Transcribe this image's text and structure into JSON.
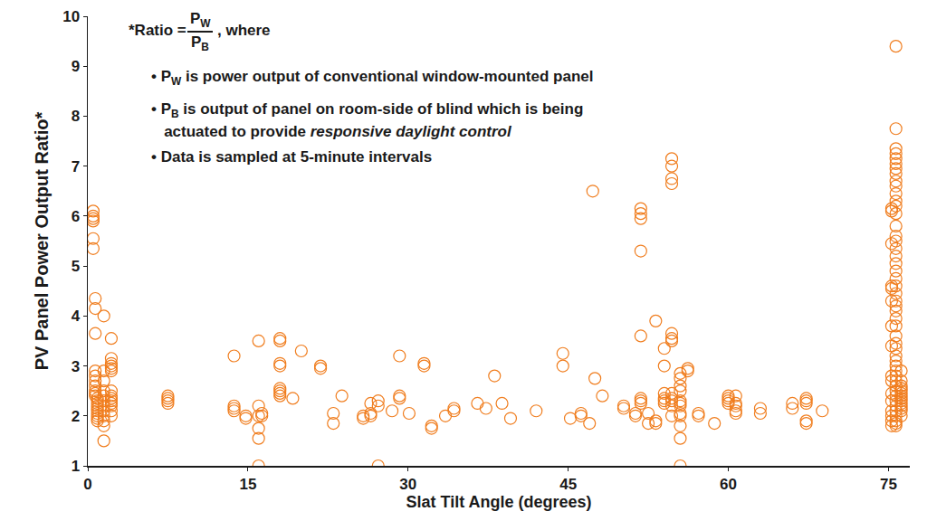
{
  "chart_data": {
    "type": "scatter",
    "x_label": "Slat Tilt Angle (degrees)",
    "y_label": "PV Panel Power Output Ratio*",
    "color": "#f07d1e",
    "marker": "circle-open",
    "grid": false,
    "xlim": [
      0,
      77
    ],
    "xticks": [
      0,
      15,
      30,
      45,
      60,
      75
    ],
    "ylim": [
      1,
      10
    ],
    "yticks": [
      1,
      2,
      3,
      4,
      5,
      6,
      7,
      8,
      9,
      10
    ],
    "ratio": {
      "prefix": "*Ratio =",
      "numerator": [
        {
          "text": "P"
        },
        {
          "text": "W",
          "style": "sub"
        }
      ],
      "denominator": [
        {
          "text": "P"
        },
        {
          "text": "B",
          "style": "sub"
        }
      ],
      "suffix": ", where"
    },
    "notes": [
      [
        {
          "text": "• "
        },
        {
          "text": "P"
        },
        {
          "text": "W",
          "style": "sub"
        },
        {
          "text": " is power output of conventional window-mounted panel"
        }
      ],
      [
        {
          "text": "• "
        },
        {
          "text": "P"
        },
        {
          "text": "B",
          "style": "sub"
        },
        {
          "text": " is output of panel on room-side of blind which is being"
        }
      ],
      [
        {
          "text": "   actuated to provide "
        },
        {
          "text": "responsive daylight control",
          "style": "italic"
        }
      ],
      [
        {
          "text": "• Data is sampled at 5-minute intervals"
        }
      ]
    ],
    "x": [
      0.5,
      0.5,
      0.5,
      0.5,
      0.5,
      0.5,
      0.7,
      0.7,
      0.7,
      0.7,
      0.7,
      0.7,
      0.7,
      0.7,
      0.7,
      0.7,
      0.9,
      0.9,
      0.9,
      0.9,
      0.9,
      0.9,
      0.9,
      0.9,
      0.9,
      0.9,
      1.5,
      1.5,
      1.5,
      1.5,
      1.5,
      1.5,
      1.5,
      1.5,
      1.5,
      1.5,
      1.5,
      1.5,
      2.2,
      2.2,
      2.2,
      2.2,
      2.2,
      2.2,
      2.2,
      2.2,
      2.2,
      2.2,
      2.2,
      2.2,
      2.2,
      2.2,
      7.5,
      7.5,
      7.5,
      7.5,
      13.7,
      13.7,
      13.7,
      13.7,
      14.8,
      14.8,
      16.0,
      16.0,
      16.0,
      16.0,
      16.0,
      16.0,
      16.3,
      16.3,
      18.0,
      18.0,
      18.0,
      18.0,
      18.0,
      18.0,
      18.0,
      18.0,
      19.2,
      20.0,
      21.8,
      21.8,
      23.0,
      23.0,
      23.8,
      25.8,
      25.8,
      26.5,
      26.5,
      26.5,
      27.2,
      27.2,
      27.2,
      28.5,
      29.2,
      29.2,
      29.2,
      30.1,
      31.5,
      31.5,
      32.2,
      32.2,
      33.5,
      34.3,
      34.3,
      36.5,
      37.3,
      38.1,
      38.8,
      39.6,
      42.0,
      44.5,
      44.5,
      45.2,
      46.2,
      46.2,
      47.0,
      47.3,
      47.5,
      48.2,
      50.2,
      50.2,
      51.3,
      51.3,
      51.8,
      51.8,
      51.8,
      51.8,
      51.8,
      51.8,
      51.8,
      51.8,
      52.5,
      52.5,
      53.2,
      53.2,
      53.2,
      54.0,
      54.0,
      54.0,
      54.0,
      54.0,
      54.0,
      54.7,
      54.7,
      54.7,
      54.7,
      54.7,
      54.7,
      54.7,
      54.7,
      54.7,
      54.7,
      54.7,
      54.7,
      55.5,
      55.5,
      55.5,
      55.5,
      55.5,
      55.5,
      55.5,
      55.5,
      55.5,
      55.5,
      55.5,
      55.5,
      56.2,
      56.2,
      57.2,
      57.2,
      58.7,
      60.0,
      60.0,
      60.0,
      60.0,
      60.7,
      60.7,
      60.7,
      60.7,
      60.7,
      63.0,
      63.0,
      66.0,
      66.0,
      67.3,
      67.3,
      67.3,
      67.3,
      67.3,
      68.8,
      75.3,
      75.3,
      75.3,
      75.3,
      75.3,
      75.3,
      75.3,
      75.3,
      75.3,
      75.3,
      75.3,
      75.3,
      75.3,
      75.3,
      75.3,
      75.3,
      75.7,
      75.7,
      75.7,
      75.7,
      75.7,
      75.7,
      75.7,
      75.7,
      75.7,
      75.7,
      75.7,
      75.7,
      75.7,
      75.7,
      75.7,
      75.7,
      75.7,
      75.7,
      75.7,
      75.7,
      75.7,
      75.7,
      75.7,
      75.7,
      75.7,
      75.7,
      75.7,
      75.7,
      75.7,
      75.7,
      75.7,
      75.7,
      75.7,
      75.7,
      75.7,
      75.7,
      75.7,
      75.7,
      75.7,
      75.7,
      75.7,
      75.7,
      75.7,
      75.7,
      75.7,
      75.7,
      75.7,
      75.7,
      76.2,
      76.2,
      76.2,
      76.2,
      76.2,
      76.2,
      76.2,
      76.2,
      76.2,
      76.2,
      76.2,
      76.2,
      76.2,
      76.2
    ],
    "values": [
      6.1,
      6.0,
      5.95,
      5.9,
      5.55,
      5.35,
      4.35,
      4.15,
      3.65,
      2.9,
      2.8,
      2.7,
      2.6,
      2.5,
      2.45,
      2.4,
      2.35,
      2.3,
      2.25,
      2.2,
      2.15,
      2.1,
      2.05,
      2.0,
      1.95,
      1.9,
      4.0,
      2.9,
      2.7,
      2.5,
      2.4,
      2.3,
      2.2,
      2.1,
      2.0,
      1.9,
      1.8,
      1.5,
      3.55,
      3.15,
      3.05,
      3.0,
      2.95,
      2.9,
      2.5,
      2.4,
      2.35,
      2.3,
      2.25,
      2.2,
      2.1,
      2.0,
      2.4,
      2.35,
      2.3,
      2.25,
      3.2,
      2.2,
      2.15,
      2.1,
      2.0,
      1.95,
      3.5,
      2.2,
      2.0,
      1.75,
      1.55,
      1.0,
      2.05,
      2.0,
      3.55,
      3.5,
      3.05,
      3.0,
      2.55,
      2.5,
      2.45,
      2.4,
      2.35,
      3.3,
      3.0,
      2.95,
      2.05,
      1.85,
      2.4,
      2.0,
      1.95,
      2.25,
      2.05,
      2.0,
      1.0,
      2.3,
      2.2,
      2.1,
      3.2,
      2.4,
      2.35,
      2.05,
      3.05,
      3.0,
      1.8,
      1.75,
      2.0,
      2.1,
      2.15,
      2.25,
      2.15,
      2.8,
      2.25,
      1.95,
      2.1,
      3.0,
      3.25,
      1.95,
      2.05,
      2.0,
      1.85,
      6.5,
      2.75,
      2.4,
      2.2,
      2.15,
      2.05,
      2.0,
      6.15,
      6.05,
      5.95,
      5.3,
      3.6,
      2.35,
      2.3,
      2.25,
      2.05,
      1.85,
      3.9,
      1.9,
      1.85,
      3.35,
      3.0,
      2.45,
      2.35,
      2.3,
      2.25,
      7.15,
      7.0,
      6.75,
      6.65,
      3.65,
      3.55,
      3.5,
      2.45,
      2.35,
      2.3,
      2.2,
      2.0,
      2.85,
      2.75,
      2.6,
      2.5,
      2.3,
      2.25,
      2.2,
      2.05,
      2.0,
      1.8,
      1.55,
      1.0,
      2.95,
      2.9,
      2.05,
      2.0,
      1.85,
      2.4,
      2.35,
      2.3,
      2.25,
      2.4,
      2.25,
      2.2,
      2.1,
      2.05,
      2.15,
      2.05,
      2.25,
      2.15,
      2.35,
      2.3,
      2.25,
      1.9,
      1.85,
      2.1,
      6.15,
      6.1,
      5.45,
      4.6,
      4.55,
      4.3,
      3.8,
      3.4,
      2.8,
      2.7,
      2.45,
      2.3,
      2.1,
      2.0,
      1.9,
      1.8,
      9.4,
      7.75,
      7.35,
      7.25,
      7.15,
      7.05,
      6.95,
      6.85,
      6.7,
      6.6,
      6.45,
      6.3,
      6.2,
      6.05,
      5.8,
      5.6,
      5.5,
      5.35,
      5.2,
      5.05,
      4.9,
      4.75,
      4.6,
      4.45,
      4.3,
      4.2,
      4.1,
      3.95,
      3.8,
      3.6,
      3.45,
      3.35,
      3.2,
      3.1,
      3.0,
      2.9,
      2.8,
      2.7,
      2.6,
      2.5,
      2.4,
      2.3,
      2.2,
      2.1,
      2.0,
      1.9,
      1.85,
      1.8,
      2.9,
      2.7,
      2.6,
      2.55,
      2.5,
      2.45,
      2.4,
      2.35,
      2.3,
      2.25,
      2.2,
      2.15,
      2.1,
      2.0
    ]
  }
}
